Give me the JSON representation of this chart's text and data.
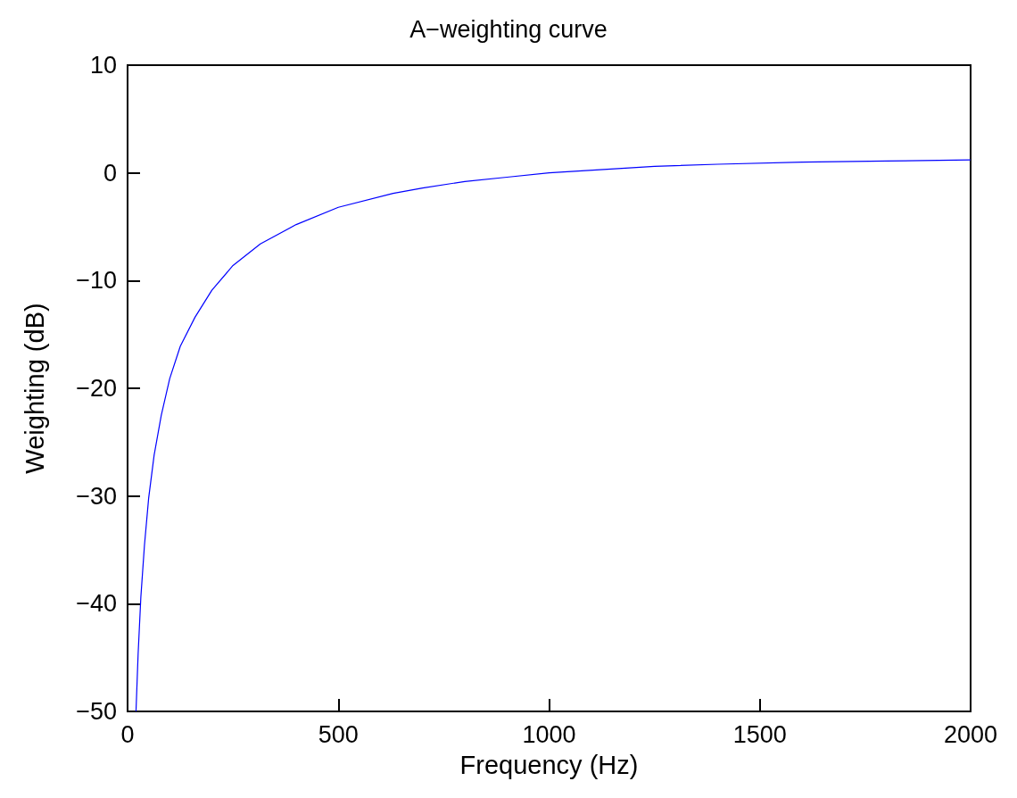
{
  "chart_data": {
    "type": "line",
    "title": "A−weighting curve",
    "xlabel": "Frequency (Hz)",
    "ylabel": "Weighting (dB)",
    "x": [
      20,
      25,
      31.5,
      40,
      50,
      63,
      80,
      100,
      125,
      160,
      200,
      250,
      315,
      400,
      500,
      630,
      700,
      800,
      900,
      1000,
      1250,
      1400,
      1600,
      1800,
      2000
    ],
    "series": [
      {
        "color": "#0000ff",
        "values": [
          -50,
          -44.7,
          -39.4,
          -34.6,
          -30.2,
          -26.2,
          -22.5,
          -19.1,
          -16.1,
          -13.4,
          -10.9,
          -8.6,
          -6.6,
          -4.8,
          -3.2,
          -1.9,
          -1.4,
          -0.8,
          -0.4,
          0,
          0.6,
          0.8,
          1.0,
          1.1,
          1.2
        ]
      }
    ],
    "xlim": [
      0,
      2000
    ],
    "xticks": [
      0,
      500,
      1000,
      1500,
      2000
    ],
    "ylim": [
      -50,
      10
    ],
    "yticks": [
      {
        "value": -50,
        "label": "−50"
      },
      {
        "value": -40,
        "label": "−40"
      },
      {
        "value": -30,
        "label": "−30"
      },
      {
        "value": -20,
        "label": "−20"
      },
      {
        "value": -10,
        "label": "−10"
      },
      0,
      10
    ],
    "grid": false,
    "marker": "none",
    "line_style": "solid"
  }
}
